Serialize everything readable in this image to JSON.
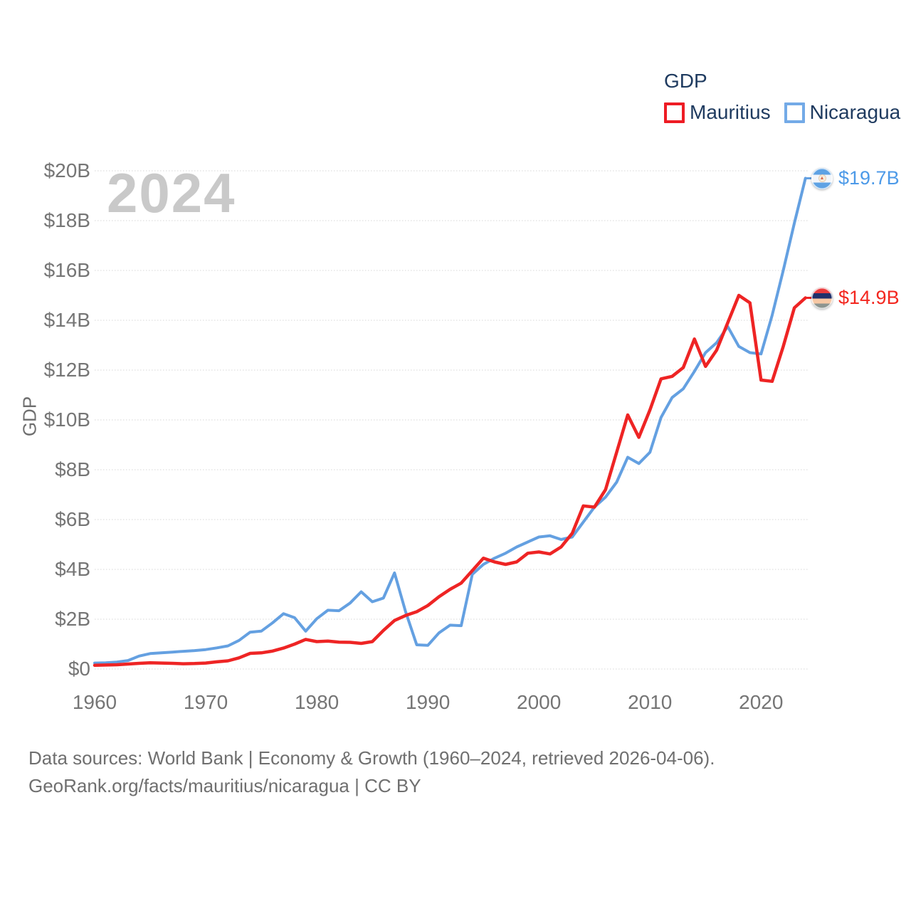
{
  "legend": {
    "title": "GDP",
    "items": [
      {
        "label": "Mauritius",
        "color": "#ee1c24"
      },
      {
        "label": "Nicaragua",
        "color": "#73aae7"
      }
    ]
  },
  "watermark": "2024",
  "y_axis": {
    "title": "GDP",
    "tick_labels": [
      "$0",
      "$2B",
      "$4B",
      "$6B",
      "$8B",
      "$10B",
      "$12B",
      "$14B",
      "$16B",
      "$18B",
      "$20B"
    ]
  },
  "x_axis": {
    "tick_labels": [
      "1960",
      "1970",
      "1980",
      "1990",
      "2000",
      "2010",
      "2020"
    ]
  },
  "end_labels": [
    {
      "series": "Nicaragua",
      "value": "$19.7B",
      "color": "#4d9ae8",
      "flag": "nicaragua-flag"
    },
    {
      "series": "Mauritius",
      "value": "$14.9B",
      "color": "#f3271f",
      "flag": "mauritius-flag"
    }
  ],
  "footer": {
    "line1": "Data sources: World Bank | Economy & Growth (1960–2024, retrieved 2026-04-06).",
    "line2": "GeoRank.org/facts/mauritius/nicaragua | CC BY"
  },
  "chart_data": {
    "type": "line",
    "title": "GDP",
    "ylabel": "GDP",
    "units": "billions USD",
    "xlim": [
      1960,
      2024
    ],
    "ylim": [
      0,
      20
    ],
    "yticks": [
      0,
      2,
      4,
      6,
      8,
      10,
      12,
      14,
      16,
      18,
      20
    ],
    "xticks": [
      1960,
      1970,
      1980,
      1990,
      2000,
      2010,
      2020
    ],
    "grid": true,
    "legend_position": "top-right",
    "x": [
      1960,
      1961,
      1962,
      1963,
      1964,
      1965,
      1966,
      1967,
      1968,
      1969,
      1970,
      1971,
      1972,
      1973,
      1974,
      1975,
      1976,
      1977,
      1978,
      1979,
      1980,
      1981,
      1982,
      1983,
      1984,
      1985,
      1986,
      1987,
      1988,
      1989,
      1990,
      1991,
      1992,
      1993,
      1994,
      1995,
      1996,
      1997,
      1998,
      1999,
      2000,
      2001,
      2002,
      2003,
      2004,
      2005,
      2006,
      2007,
      2008,
      2009,
      2010,
      2011,
      2012,
      2013,
      2014,
      2015,
      2016,
      2017,
      2018,
      2019,
      2020,
      2021,
      2022,
      2023,
      2024
    ],
    "series": [
      {
        "name": "Nicaragua",
        "color": "#64a0e1",
        "stroke_width": 4,
        "values": [
          0.24,
          0.25,
          0.28,
          0.34,
          0.52,
          0.62,
          0.65,
          0.68,
          0.71,
          0.74,
          0.78,
          0.85,
          0.93,
          1.15,
          1.48,
          1.52,
          1.85,
          2.22,
          2.06,
          1.52,
          2.02,
          2.36,
          2.34,
          2.65,
          3.1,
          2.7,
          2.85,
          3.86,
          2.3,
          0.97,
          0.95,
          1.45,
          1.76,
          1.74,
          3.8,
          4.2,
          4.45,
          4.65,
          4.9,
          5.1,
          5.3,
          5.35,
          5.2,
          5.3,
          5.9,
          6.5,
          6.9,
          7.5,
          8.5,
          8.25,
          8.7,
          10.1,
          10.9,
          11.25,
          11.95,
          12.7,
          13.1,
          13.75,
          12.95,
          12.7,
          12.65,
          14.2,
          16.0,
          17.9,
          19.7
        ]
      },
      {
        "name": "Mauritius",
        "color": "#ee2424",
        "stroke_width": 4.5,
        "values": [
          0.15,
          0.16,
          0.17,
          0.2,
          0.23,
          0.25,
          0.24,
          0.23,
          0.21,
          0.22,
          0.24,
          0.29,
          0.33,
          0.45,
          0.63,
          0.65,
          0.72,
          0.84,
          1.0,
          1.19,
          1.1,
          1.12,
          1.08,
          1.07,
          1.03,
          1.1,
          1.55,
          1.95,
          2.15,
          2.3,
          2.55,
          2.9,
          3.2,
          3.45,
          3.95,
          4.45,
          4.3,
          4.2,
          4.3,
          4.65,
          4.7,
          4.62,
          4.9,
          5.45,
          6.55,
          6.5,
          7.2,
          8.7,
          10.2,
          9.3,
          10.4,
          11.65,
          11.75,
          12.1,
          13.25,
          12.15,
          12.8,
          13.9,
          15.0,
          14.7,
          11.6,
          11.55,
          12.95,
          14.5,
          14.9
        ]
      }
    ]
  }
}
